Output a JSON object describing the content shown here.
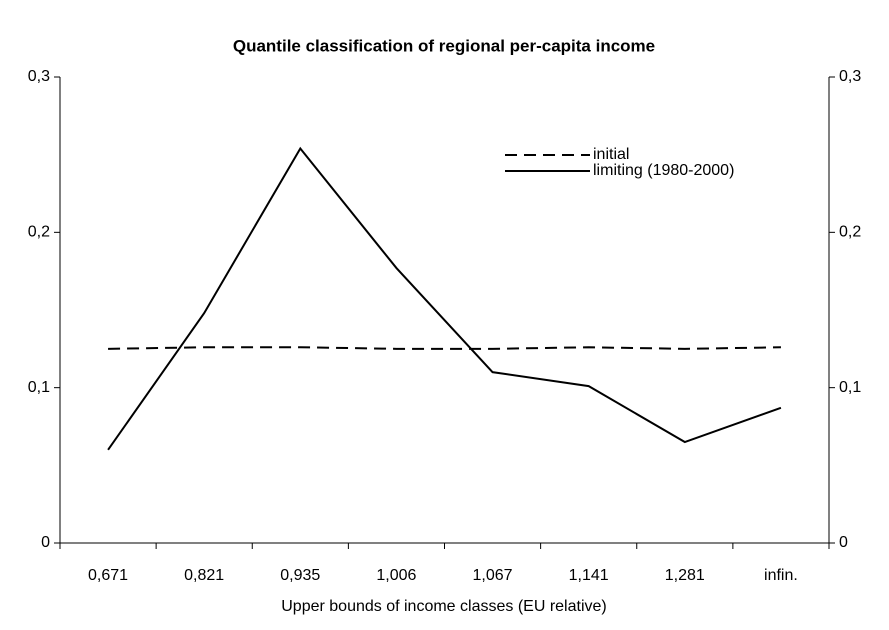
{
  "chart_data": {
    "type": "line",
    "title": "Quantile classification of regional per-capita income",
    "x_label": "Upper bounds of income classes (EU relative)",
    "categories": [
      "0,671",
      "0,821",
      "0,935",
      "1,006",
      "1,067",
      "1,141",
      "1,281",
      "infin."
    ],
    "series": [
      {
        "name": "initial",
        "color": "#000000",
        "dash": true,
        "values": [
          0.125,
          0.126,
          0.126,
          0.125,
          0.125,
          0.126,
          0.125,
          0.126
        ]
      },
      {
        "name": "limiting (1980-2000)",
        "color": "#000000",
        "dash": false,
        "values": [
          0.06,
          0.148,
          0.254,
          0.177,
          0.11,
          0.101,
          0.065,
          0.087
        ]
      }
    ],
    "ylim": [
      0,
      0.3
    ],
    "yticks": [
      0,
      {
        "value": 0.1,
        "label": "0,1"
      },
      {
        "value": 0.2,
        "label": "0,2"
      },
      {
        "value": 0.3,
        "label": "0,3"
      }
    ],
    "y2lim": [
      0,
      0.3
    ],
    "y2ticks": [
      0,
      {
        "value": 0.1,
        "label": "0,1"
      },
      {
        "value": 0.2,
        "label": "0,2"
      },
      {
        "value": 0.3,
        "label": "0,3"
      }
    ],
    "grid": false,
    "legend": "top-right"
  }
}
